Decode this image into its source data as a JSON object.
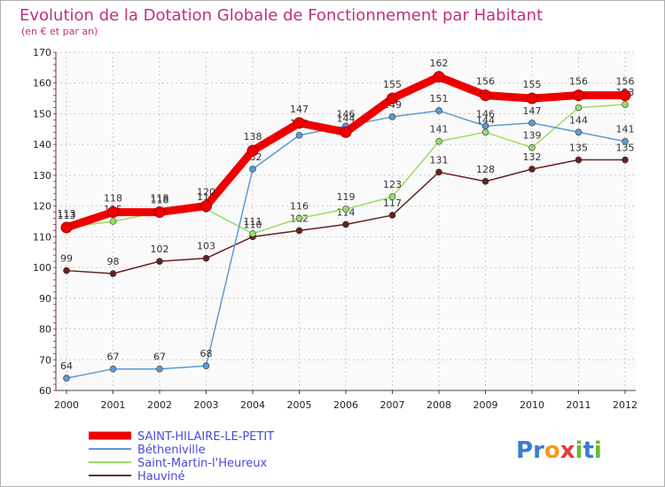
{
  "chart_data": {
    "type": "line",
    "title": "Evolution de la Dotation Globale de Fonctionnement par Habitant",
    "subtitle": "(en € et par an)",
    "x": [
      "2000",
      "2001",
      "2002",
      "2003",
      "2004",
      "2005",
      "2006",
      "2007",
      "2008",
      "2009",
      "2010",
      "2011",
      "2012"
    ],
    "ylim": [
      60,
      170
    ],
    "yticks": [
      60,
      70,
      80,
      90,
      100,
      110,
      120,
      130,
      140,
      150,
      160,
      170
    ],
    "grid": true,
    "legend_position": "bottom-left",
    "series": [
      {
        "name": "SAINT-HILAIRE-LE-PETIT",
        "color": "#ee0000",
        "values": [
          113,
          118,
          118,
          120,
          138,
          147,
          144,
          155,
          162,
          156,
          155,
          156,
          156
        ]
      },
      {
        "name": "Bétheniville",
        "color": "#5b9bd5",
        "values": [
          64,
          67,
          67,
          68,
          132,
          143,
          146,
          149,
          151,
          146,
          147,
          144,
          141
        ]
      },
      {
        "name": "Saint-Martin-l'Heureux",
        "color": "#99dd66",
        "values": [
          113,
          115,
          118,
          119,
          111,
          116,
          119,
          123,
          141,
          144,
          139,
          152,
          153
        ]
      },
      {
        "name": "Hauviné",
        "color": "#662222",
        "values": [
          99,
          98,
          102,
          103,
          110,
          112,
          114,
          117,
          131,
          128,
          132,
          135,
          135
        ]
      }
    ]
  },
  "brand": {
    "text": "Proxiti",
    "letters": [
      "P",
      "r",
      "o",
      "x",
      "i",
      "t",
      "i"
    ],
    "colors": [
      "#3a7bd5",
      "#3a7bd5",
      "#f29b1d",
      "#e23c3c",
      "#66bb33",
      "#3a7bd5",
      "#66bb33"
    ]
  }
}
